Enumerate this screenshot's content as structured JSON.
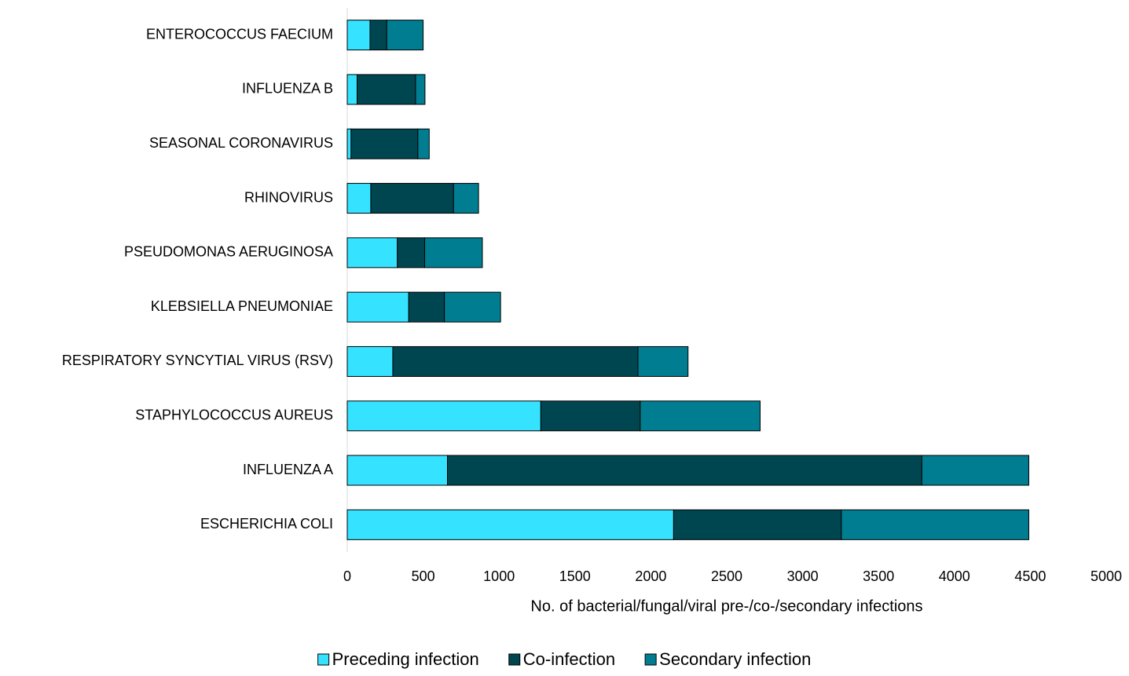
{
  "chart_data": {
    "type": "stacked_bar_horizontal",
    "xlabel": "No. of bacterial/fungal/viral pre-/co-/secondary infections",
    "categories": [
      "ENTEROCOCCUS FAECIUM",
      "INFLUENZA B",
      "SEASONAL CORONAVIRUS",
      "RHINOVIRUS",
      "PSEUDOMONAS AERUGINOSA",
      "KLEBSIELLA PNEUMONIAE",
      "RESPIRATORY SYNCYTIAL VIRUS (RSV)",
      "STAPHYLOCOCCUS AUREUS",
      "INFLUENZA A",
      "ESCHERICHIA COLI"
    ],
    "series": [
      {
        "name": "Preceding infection",
        "color": "#35e2ff",
        "values": [
          150,
          65,
          25,
          155,
          330,
          405,
          300,
          1275,
          660,
          2150
        ]
      },
      {
        "name": "Co-infection",
        "color": "#004651",
        "values": [
          110,
          385,
          440,
          545,
          180,
          235,
          1615,
          655,
          3125,
          1105
        ]
      },
      {
        "name": "Secondary infection",
        "color": "#007d91",
        "values": [
          240,
          62,
          75,
          165,
          380,
          370,
          330,
          790,
          705,
          1235
        ]
      }
    ],
    "xlim": [
      0,
      5000
    ],
    "xticks": [
      0,
      500,
      1000,
      1500,
      2000,
      2500,
      3000,
      3500,
      4000,
      4500,
      5000
    ],
    "legend": "bottom"
  }
}
